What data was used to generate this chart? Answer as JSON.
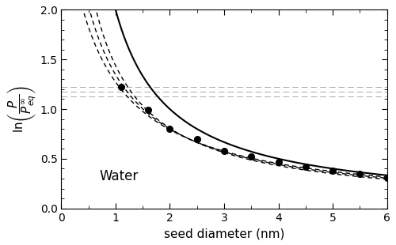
{
  "title": "",
  "xlabel": "seed diameter (nm)",
  "xlim": [
    0,
    6
  ],
  "ylim": [
    0.0,
    2.0
  ],
  "annotation": "Water",
  "background_color": "#ffffff",
  "kelvin_color": "#000000",
  "dashed_curve_color": "#000000",
  "horizontal_line_color": "#aaaaaa",
  "marker_color": "#000000",
  "horizontal_lines": [
    1.225,
    1.175,
    1.125
  ],
  "marker_points": [
    [
      1.1,
      1.225
    ],
    [
      1.6,
      0.99
    ],
    [
      2.0,
      0.8
    ],
    [
      2.5,
      0.695
    ],
    [
      3.0,
      0.575
    ],
    [
      3.5,
      0.525
    ],
    [
      4.0,
      0.47
    ],
    [
      4.5,
      0.42
    ],
    [
      5.0,
      0.38
    ],
    [
      5.5,
      0.345
    ],
    [
      6.0,
      0.305
    ]
  ],
  "kelvin_A": 2.0,
  "dashed_A": [
    1.08,
    1.18,
    1.3
  ],
  "dashed_n": [
    0.8,
    0.8,
    0.8
  ]
}
